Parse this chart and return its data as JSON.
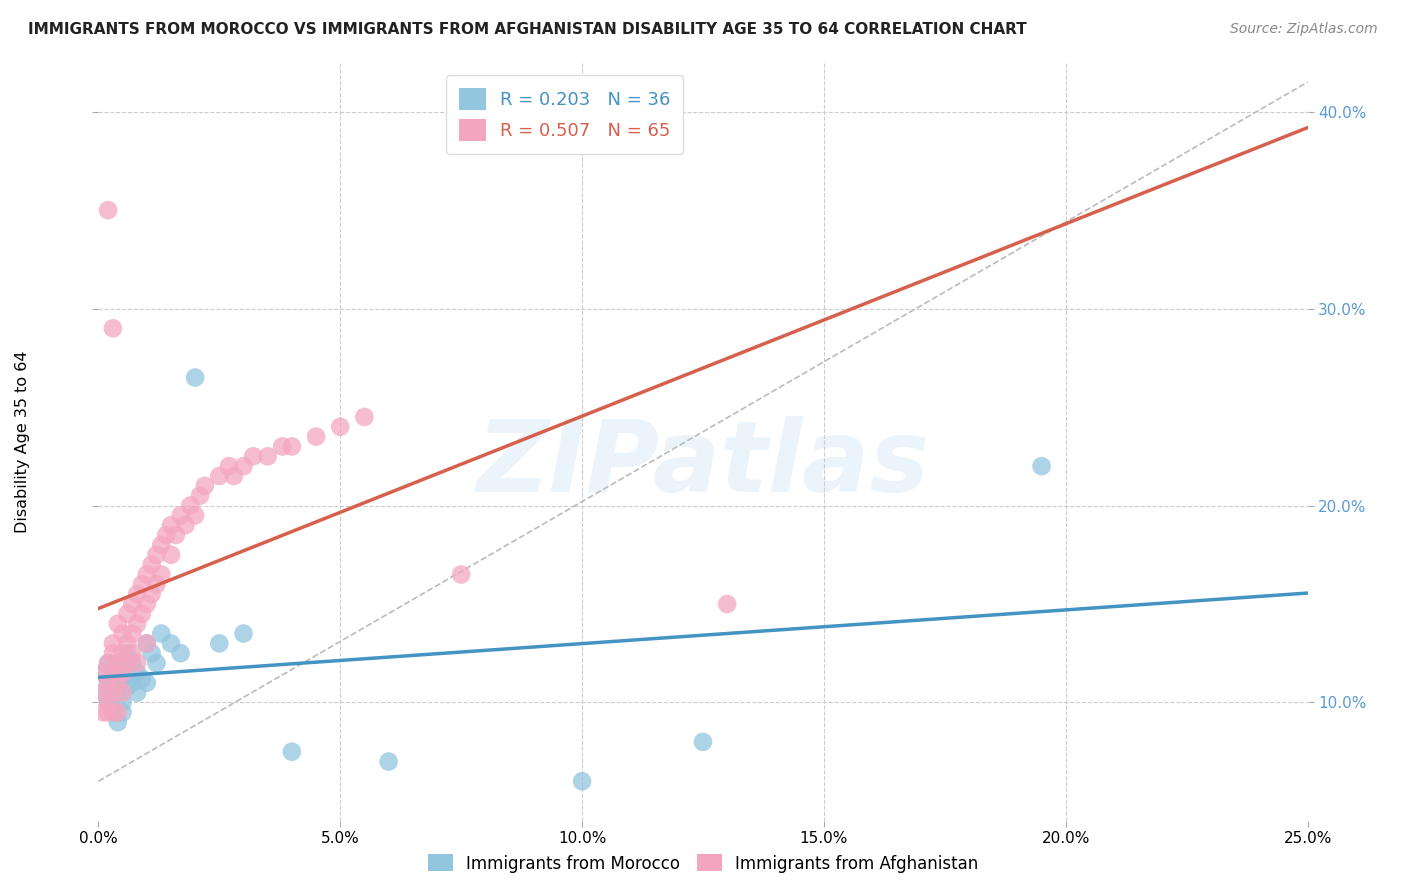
{
  "title": "IMMIGRANTS FROM MOROCCO VS IMMIGRANTS FROM AFGHANISTAN DISABILITY AGE 35 TO 64 CORRELATION CHART",
  "source_text": "Source: ZipAtlas.com",
  "ylabel": "Disability Age 35 to 64",
  "xlim": [
    0.0,
    0.25
  ],
  "ylim": [
    0.04,
    0.425
  ],
  "xticks": [
    0.0,
    0.05,
    0.1,
    0.15,
    0.2,
    0.25
  ],
  "yticks": [
    0.1,
    0.2,
    0.3,
    0.4
  ],
  "morocco_color": "#92c5de",
  "afghanistan_color": "#f4a6c0",
  "morocco_line_color": "#4393c3",
  "afghanistan_line_color": "#d6604d",
  "r_morocco": 0.203,
  "n_morocco": 36,
  "r_afghanistan": 0.507,
  "n_afghanistan": 65,
  "legend_label_morocco": "Immigrants from Morocco",
  "legend_label_afghanistan": "Immigrants from Afghanistan",
  "watermark_text": "ZIPatlas",
  "background_color": "#ffffff",
  "grid_color": "#cccccc",
  "morocco_x": [
    0.001,
    0.001,
    0.002,
    0.002,
    0.002,
    0.003,
    0.003,
    0.003,
    0.004,
    0.004,
    0.004,
    0.005,
    0.005,
    0.005,
    0.006,
    0.006,
    0.007,
    0.007,
    0.008,
    0.008,
    0.009,
    0.01,
    0.01,
    0.011,
    0.012,
    0.013,
    0.015,
    0.017,
    0.02,
    0.025,
    0.03,
    0.195,
    0.1,
    0.04,
    0.125,
    0.06
  ],
  "morocco_y": [
    0.105,
    0.115,
    0.1,
    0.11,
    0.12,
    0.095,
    0.115,
    0.108,
    0.105,
    0.118,
    0.09,
    0.112,
    0.1,
    0.095,
    0.108,
    0.125,
    0.11,
    0.12,
    0.105,
    0.115,
    0.112,
    0.13,
    0.11,
    0.125,
    0.12,
    0.135,
    0.13,
    0.125,
    0.265,
    0.13,
    0.135,
    0.22,
    0.06,
    0.075,
    0.08,
    0.07
  ],
  "afghanistan_x": [
    0.001,
    0.001,
    0.001,
    0.002,
    0.002,
    0.002,
    0.002,
    0.003,
    0.003,
    0.003,
    0.003,
    0.003,
    0.004,
    0.004,
    0.004,
    0.004,
    0.005,
    0.005,
    0.005,
    0.005,
    0.006,
    0.006,
    0.006,
    0.007,
    0.007,
    0.007,
    0.008,
    0.008,
    0.008,
    0.009,
    0.009,
    0.01,
    0.01,
    0.01,
    0.011,
    0.011,
    0.012,
    0.012,
    0.013,
    0.013,
    0.014,
    0.015,
    0.015,
    0.016,
    0.017,
    0.018,
    0.019,
    0.02,
    0.021,
    0.022,
    0.025,
    0.027,
    0.028,
    0.03,
    0.032,
    0.035,
    0.038,
    0.04,
    0.045,
    0.05,
    0.055,
    0.075,
    0.13,
    0.002,
    0.003
  ],
  "afghanistan_y": [
    0.105,
    0.115,
    0.095,
    0.1,
    0.12,
    0.11,
    0.095,
    0.125,
    0.115,
    0.105,
    0.13,
    0.095,
    0.14,
    0.12,
    0.11,
    0.095,
    0.135,
    0.125,
    0.115,
    0.105,
    0.145,
    0.13,
    0.12,
    0.15,
    0.135,
    0.125,
    0.155,
    0.14,
    0.12,
    0.16,
    0.145,
    0.165,
    0.15,
    0.13,
    0.17,
    0.155,
    0.175,
    0.16,
    0.18,
    0.165,
    0.185,
    0.19,
    0.175,
    0.185,
    0.195,
    0.19,
    0.2,
    0.195,
    0.205,
    0.21,
    0.215,
    0.22,
    0.215,
    0.22,
    0.225,
    0.225,
    0.23,
    0.23,
    0.235,
    0.24,
    0.245,
    0.165,
    0.15,
    0.35,
    0.29
  ]
}
